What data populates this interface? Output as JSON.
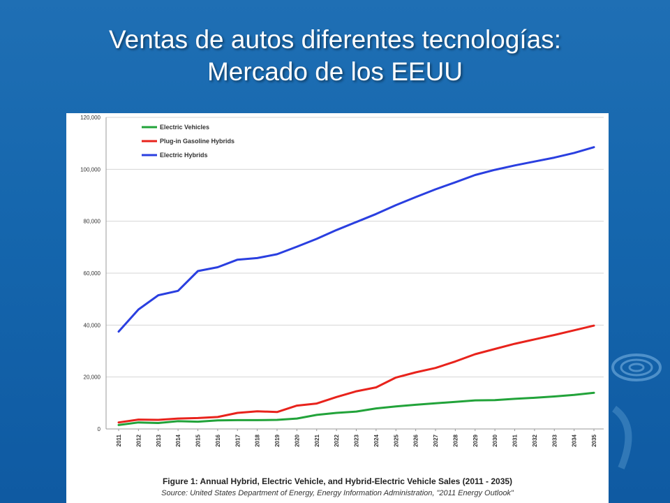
{
  "slide": {
    "title_line1": "Ventas de autos diferentes tecnologías:",
    "title_line2": "Mercado de los EEUU"
  },
  "figure": {
    "caption": "Figure 1: Annual Hybrid, Electric Vehicle, and Hybrid-Electric Vehicle Sales (2011 - 2035)",
    "source": "Source: United States Department of Energy, Energy Information Administration, \"2011 Energy Outlook\""
  },
  "chart_data": {
    "type": "line",
    "title": "",
    "xlabel": "",
    "ylabel": "",
    "x": [
      "2011",
      "2012",
      "2013",
      "2014",
      "2015",
      "2016",
      "2017",
      "2018",
      "2019",
      "2020",
      "2021",
      "2022",
      "2023",
      "2024",
      "2025",
      "2026",
      "2027",
      "2028",
      "2029",
      "2030",
      "2031",
      "2032",
      "2033",
      "2034",
      "2035"
    ],
    "ylim": [
      0,
      120000
    ],
    "yticks": [
      0,
      20000,
      40000,
      60000,
      80000,
      100000,
      120000
    ],
    "ytick_labels": [
      "0",
      "20,000",
      "40,000",
      "60,000",
      "80,000",
      "100,000",
      "120,000"
    ],
    "grid": "horizontal",
    "legend_position": "top-left",
    "series": [
      {
        "name": "Electric Vehicles",
        "color": "#22a33a",
        "values": [
          1500,
          2500,
          2300,
          3000,
          2800,
          3300,
          3400,
          3400,
          3500,
          4000,
          5400,
          6200,
          6700,
          7900,
          8700,
          9300,
          9900,
          10400,
          11000,
          11100,
          11600,
          12000,
          12500,
          13100,
          13900
        ]
      },
      {
        "name": "Plug-in Gasoline Hybrids",
        "color": "#e8231c",
        "values": [
          2500,
          3600,
          3500,
          4000,
          4200,
          4600,
          6200,
          6800,
          6500,
          9000,
          9800,
          12300,
          14500,
          16000,
          19800,
          21800,
          23500,
          26000,
          28800,
          30800,
          32800,
          34500,
          36200,
          38000,
          39800
        ]
      },
      {
        "name": "Electric Hybrids",
        "color": "#2a3fe0",
        "values": [
          37500,
          46000,
          51500,
          53200,
          60800,
          62300,
          65200,
          65800,
          67300,
          70200,
          73200,
          76600,
          79700,
          82800,
          86200,
          89300,
          92300,
          95000,
          97800,
          99800,
          101500,
          103000,
          104500,
          106300,
          108500
        ]
      }
    ]
  }
}
